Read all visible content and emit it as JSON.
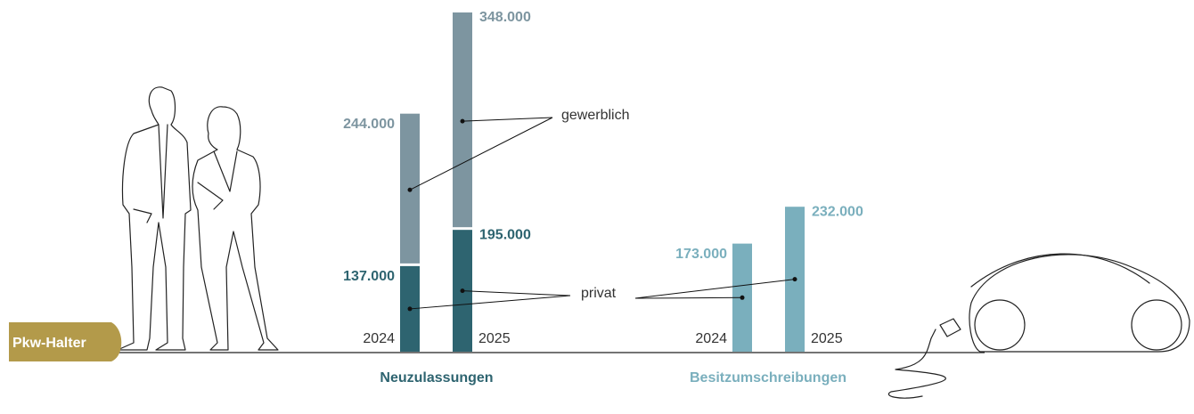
{
  "badge": "Pkw-Halter",
  "chart_data": [
    {
      "type": "bar",
      "stacked": true,
      "title": "Neuzulassungen",
      "title_color": "#2e6470",
      "categories": [
        "2024",
        "2025"
      ],
      "series": [
        {
          "name": "privat",
          "color": "#2e6470",
          "values": [
            137000,
            195000
          ],
          "value_labels": [
            "137.000",
            "195.000"
          ]
        },
        {
          "name": "gewerblich",
          "color": "#7d95a0",
          "values": [
            244000,
            348000
          ],
          "value_labels": [
            "244.000",
            "348.000"
          ]
        }
      ]
    },
    {
      "type": "bar",
      "title": "Besitzumschreibungen",
      "title_color": "#7aafbd",
      "categories": [
        "2024",
        "2025"
      ],
      "color": "#7aafbd",
      "values": [
        173000,
        232000
      ],
      "value_labels": [
        "173.000",
        "232.000"
      ]
    }
  ]
}
